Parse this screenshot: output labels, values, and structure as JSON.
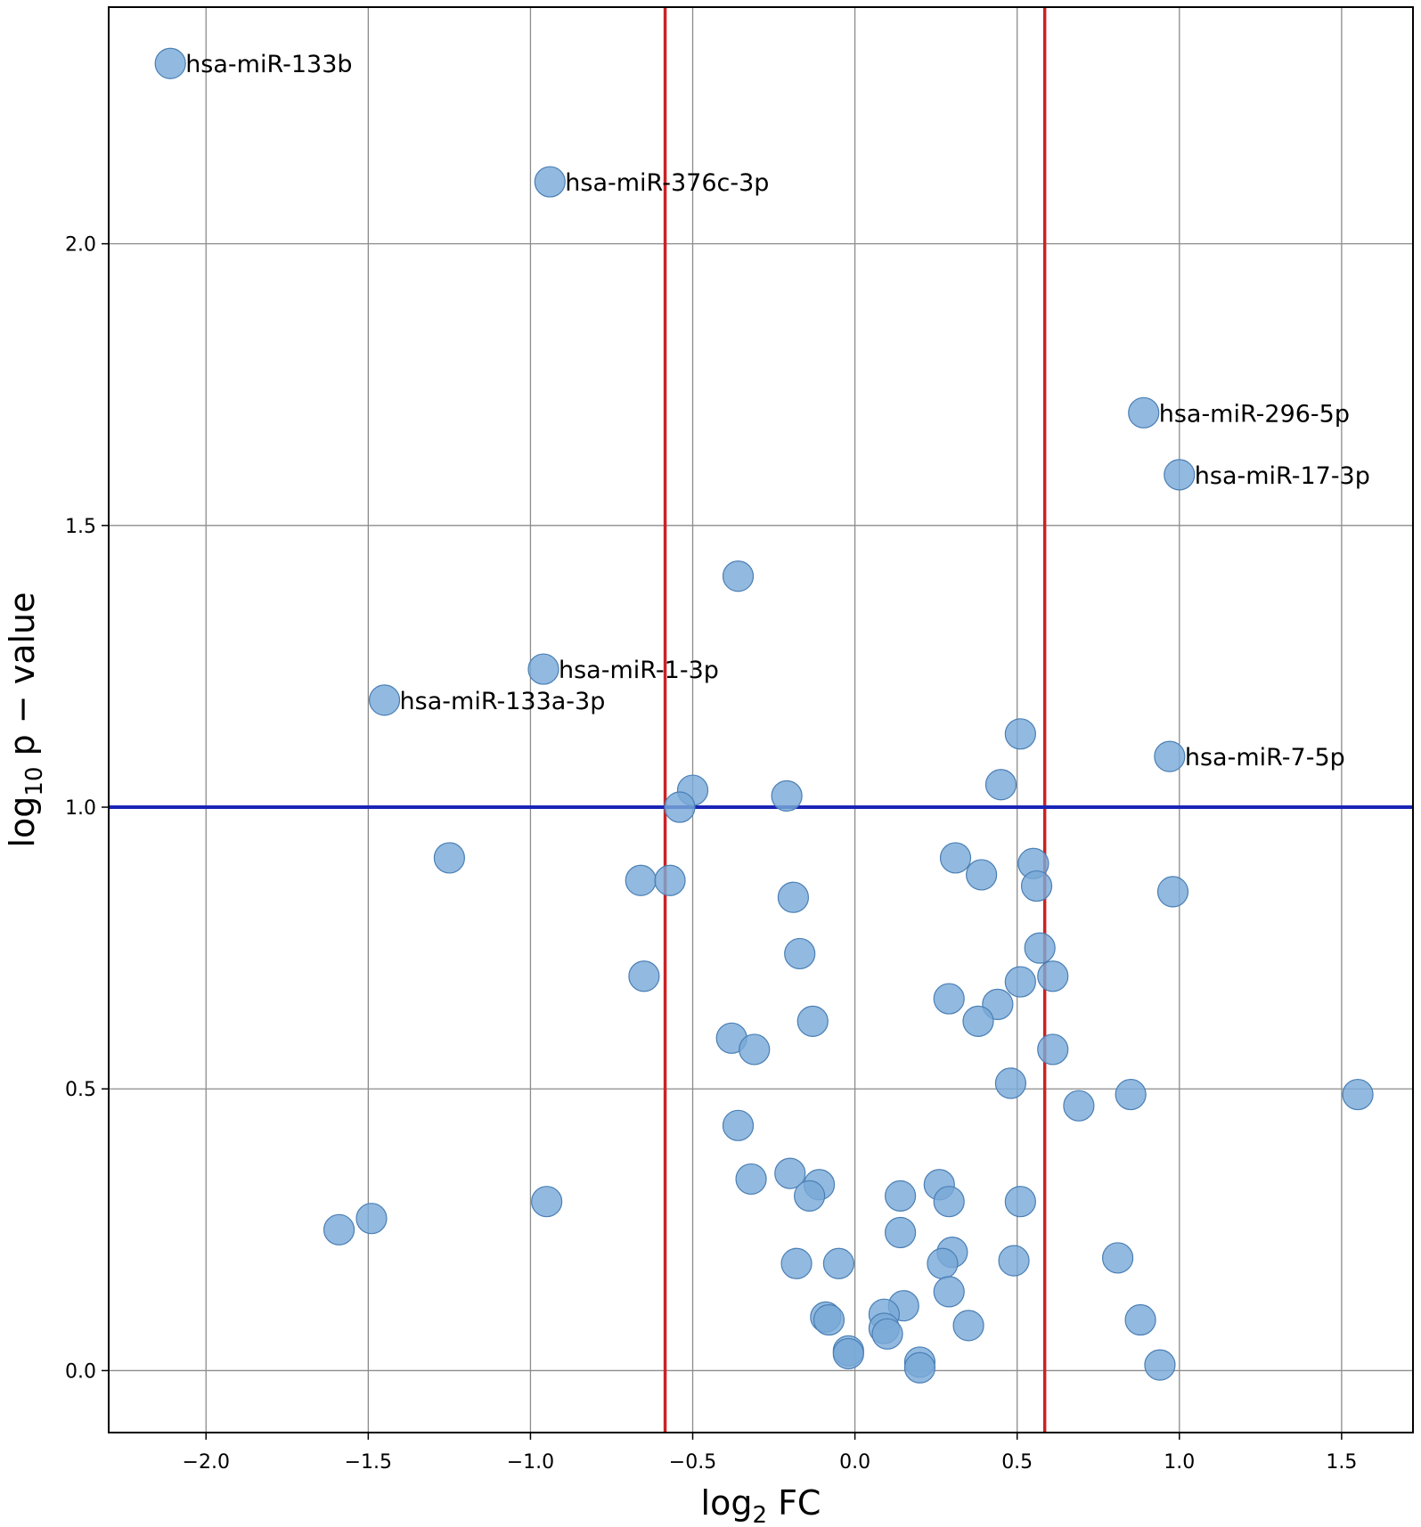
{
  "chart_data": {
    "type": "scatter",
    "title": "",
    "xlabel": {
      "prefix": "log",
      "sub": "2",
      "suffix": " FC"
    },
    "ylabel": {
      "prefix": "log",
      "sub": "10",
      "suffix": " p − value"
    },
    "xlim": [
      -2.3,
      1.72
    ],
    "ylim": [
      -0.11,
      2.42
    ],
    "xticks": [
      -2.0,
      -1.5,
      -1.0,
      -0.5,
      0.0,
      0.5,
      1.0,
      1.5
    ],
    "xtick_labels": [
      "−2.0",
      "−1.5",
      "−1.0",
      "−0.5",
      "0.0",
      "0.5",
      "1.0",
      "1.5"
    ],
    "yticks": [
      0.0,
      0.5,
      1.0,
      1.5,
      2.0
    ],
    "ytick_labels": [
      "0.0",
      "0.5",
      "1.0",
      "1.5",
      "2.0"
    ],
    "grid": true,
    "thresholds": {
      "vertical": [
        -0.585,
        0.585
      ],
      "vertical_color": "#cc2222",
      "horizontal": [
        1.0
      ],
      "horizontal_color": "#1a24b5"
    },
    "point_color": "#7aa9d8",
    "point_edge": "#4a7fb5",
    "annotated_points": [
      {
        "x": -2.11,
        "y": 2.32,
        "label": "hsa-miR-133b"
      },
      {
        "x": -0.94,
        "y": 2.11,
        "label": "hsa-miR-376c-3p"
      },
      {
        "x": 0.89,
        "y": 1.7,
        "label": "hsa-miR-296-5p"
      },
      {
        "x": 1.0,
        "y": 1.59,
        "label": "hsa-miR-17-3p"
      },
      {
        "x": -0.96,
        "y": 1.245,
        "label": "hsa-miR-1-3p"
      },
      {
        "x": -1.45,
        "y": 1.19,
        "label": "hsa-miR-133a-3p"
      },
      {
        "x": 0.97,
        "y": 1.09,
        "label": "hsa-miR-7-5p"
      }
    ],
    "points": [
      {
        "x": -0.36,
        "y": 1.41
      },
      {
        "x": 0.51,
        "y": 1.13
      },
      {
        "x": -0.5,
        "y": 1.03
      },
      {
        "x": -0.54,
        "y": 1.0
      },
      {
        "x": -0.21,
        "y": 1.02
      },
      {
        "x": 0.45,
        "y": 1.04
      },
      {
        "x": -1.25,
        "y": 0.91
      },
      {
        "x": -0.66,
        "y": 0.87
      },
      {
        "x": -0.57,
        "y": 0.87
      },
      {
        "x": 0.31,
        "y": 0.91
      },
      {
        "x": 0.39,
        "y": 0.88
      },
      {
        "x": 0.55,
        "y": 0.9
      },
      {
        "x": 0.56,
        "y": 0.86
      },
      {
        "x": 0.98,
        "y": 0.85
      },
      {
        "x": -0.19,
        "y": 0.84
      },
      {
        "x": -0.17,
        "y": 0.74
      },
      {
        "x": -0.65,
        "y": 0.7
      },
      {
        "x": 0.57,
        "y": 0.75
      },
      {
        "x": 0.51,
        "y": 0.69
      },
      {
        "x": 0.61,
        "y": 0.7
      },
      {
        "x": 0.29,
        "y": 0.66
      },
      {
        "x": 0.44,
        "y": 0.65
      },
      {
        "x": 0.38,
        "y": 0.62
      },
      {
        "x": -0.13,
        "y": 0.62
      },
      {
        "x": -0.38,
        "y": 0.59
      },
      {
        "x": -0.31,
        "y": 0.57
      },
      {
        "x": 0.61,
        "y": 0.57
      },
      {
        "x": 0.48,
        "y": 0.51
      },
      {
        "x": 0.69,
        "y": 0.47
      },
      {
        "x": 0.85,
        "y": 0.49
      },
      {
        "x": 1.55,
        "y": 0.49
      },
      {
        "x": -0.36,
        "y": 0.435
      },
      {
        "x": -0.32,
        "y": 0.34
      },
      {
        "x": -0.2,
        "y": 0.35
      },
      {
        "x": -0.11,
        "y": 0.33
      },
      {
        "x": -0.14,
        "y": 0.31
      },
      {
        "x": 0.14,
        "y": 0.31
      },
      {
        "x": 0.26,
        "y": 0.33
      },
      {
        "x": 0.29,
        "y": 0.3
      },
      {
        "x": 0.51,
        "y": 0.3
      },
      {
        "x": -0.95,
        "y": 0.3
      },
      {
        "x": -1.49,
        "y": 0.27
      },
      {
        "x": -1.59,
        "y": 0.25
      },
      {
        "x": 0.14,
        "y": 0.245
      },
      {
        "x": 0.3,
        "y": 0.21
      },
      {
        "x": 0.27,
        "y": 0.19
      },
      {
        "x": 0.49,
        "y": 0.195
      },
      {
        "x": 0.81,
        "y": 0.2
      },
      {
        "x": -0.18,
        "y": 0.19
      },
      {
        "x": -0.05,
        "y": 0.19
      },
      {
        "x": 0.29,
        "y": 0.14
      },
      {
        "x": 0.15,
        "y": 0.115
      },
      {
        "x": 0.09,
        "y": 0.1
      },
      {
        "x": -0.09,
        "y": 0.095
      },
      {
        "x": -0.08,
        "y": 0.09
      },
      {
        "x": 0.35,
        "y": 0.08
      },
      {
        "x": 0.88,
        "y": 0.09
      },
      {
        "x": 0.09,
        "y": 0.075
      },
      {
        "x": 0.1,
        "y": 0.065
      },
      {
        "x": -0.02,
        "y": 0.035
      },
      {
        "x": -0.02,
        "y": 0.03
      },
      {
        "x": 0.2,
        "y": 0.015
      },
      {
        "x": 0.2,
        "y": 0.005
      },
      {
        "x": 0.94,
        "y": 0.01
      }
    ]
  }
}
